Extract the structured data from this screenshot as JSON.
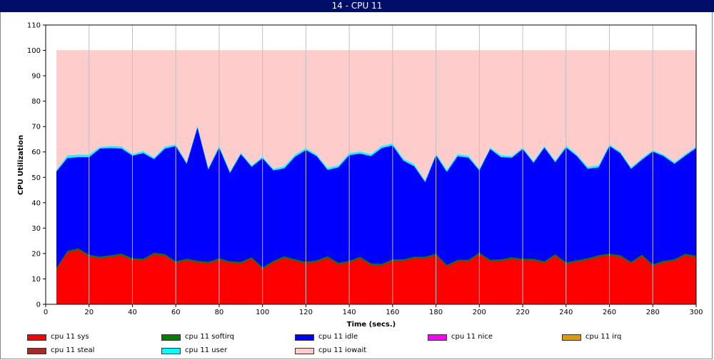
{
  "window": {
    "title": "14 - CPU 11"
  },
  "chart_data": {
    "type": "area",
    "stacked": true,
    "title": "",
    "xlabel": "Time (secs.)",
    "ylabel": "CPU Utilization",
    "xlim": [
      0,
      300
    ],
    "ylim": [
      0,
      110
    ],
    "x_ticks": [
      0,
      20,
      40,
      60,
      80,
      100,
      120,
      140,
      160,
      180,
      200,
      220,
      240,
      260,
      280,
      300
    ],
    "y_ticks": [
      0,
      10,
      20,
      30,
      40,
      50,
      60,
      70,
      80,
      90,
      100,
      110
    ],
    "grid": "vertical lines at x ticks, no horizontal gridlines",
    "legend_position": "bottom",
    "x": [
      5,
      10,
      15,
      20,
      25,
      30,
      35,
      40,
      45,
      50,
      55,
      60,
      65,
      70,
      75,
      80,
      85,
      90,
      95,
      100,
      105,
      110,
      115,
      120,
      125,
      130,
      135,
      140,
      145,
      150,
      155,
      160,
      165,
      170,
      175,
      180,
      185,
      190,
      195,
      200,
      205,
      210,
      215,
      220,
      225,
      230,
      235,
      240,
      245,
      250,
      255,
      260,
      265,
      270,
      275,
      280,
      285,
      290,
      295,
      300
    ],
    "series": [
      {
        "name": "cpu 11 sys",
        "color": "#ff0000",
        "values": [
          14,
          20.5,
          21.5,
          19,
          18.2,
          18.8,
          19.4,
          17.6,
          17.4,
          19.8,
          19.2,
          16.4,
          17.4,
          16.6,
          16.2,
          17.6,
          16.4,
          16.2,
          18,
          14,
          16.6,
          18.4,
          17.2,
          16.2,
          16.8,
          18.4,
          15.8,
          16.6,
          18.2,
          15.6,
          15.4,
          17.2,
          17.2,
          18.2,
          18.2,
          19.4,
          15,
          17,
          17,
          19.8,
          17,
          17.2,
          18,
          17.4,
          17.4,
          16.4,
          19.2,
          16,
          16.8,
          17.6,
          18.8,
          19.4,
          18.8,
          16.2,
          19,
          15.2,
          16.6,
          17.2,
          19.4,
          18.6
        ]
      },
      {
        "name": "cpu 11 softirq",
        "color": "#008000",
        "values": [
          0.6,
          0.6,
          0.6,
          0.6,
          0.6,
          0.6,
          0.6,
          0.6,
          0.6,
          0.6,
          0.6,
          0.6,
          0.6,
          0.6,
          0.6,
          0.6,
          0.6,
          0.6,
          0.6,
          0.6,
          0.6,
          0.6,
          0.6,
          0.6,
          0.6,
          0.6,
          0.6,
          0.6,
          0.6,
          0.6,
          0.6,
          0.6,
          0.6,
          0.6,
          0.6,
          0.6,
          0.6,
          0.6,
          0.6,
          0.6,
          0.6,
          0.6,
          0.6,
          0.6,
          0.6,
          0.6,
          0.6,
          0.6,
          0.6,
          0.6,
          0.6,
          0.6,
          0.6,
          0.6,
          0.6,
          0.6,
          0.6,
          0.6,
          0.6,
          0.6
        ]
      },
      {
        "name": "cpu 11 idle",
        "color": "#0000ff",
        "values": [
          37.8,
          36.6,
          35.9,
          38.4,
          42.6,
          42.2,
          41.4,
          40.4,
          41.6,
          36.8,
          41.6,
          45.4,
          37.4,
          52.6,
          36.4,
          43.6,
          34.8,
          42.4,
          35.6,
          43,
          35.6,
          34.6,
          40.4,
          44,
          41,
          34,
          37.6,
          41.6,
          40.6,
          42.2,
          45.6,
          44.8,
          38.8,
          35.6,
          29.4,
          38.8,
          36.6,
          40.8,
          40.2,
          32.4,
          43.6,
          40.2,
          39.2,
          43.2,
          37.8,
          44.8,
          36.2,
          45.2,
          41,
          35.2,
          34.6,
          42.4,
          40.2,
          36.6,
          37.4,
          44.4,
          41.2,
          37.6,
          38.6,
          42.4
        ]
      },
      {
        "name": "cpu 11 nice",
        "color": "#ff00ff",
        "values": [
          0,
          0,
          0,
          0,
          0,
          0,
          0,
          0,
          0,
          0,
          0,
          0,
          0,
          0,
          0,
          0,
          0,
          0,
          0,
          0,
          0,
          0,
          0,
          0,
          0,
          0,
          0,
          0,
          0,
          0,
          0,
          0,
          0,
          0,
          0,
          0,
          0,
          0,
          0,
          0,
          0,
          0,
          0,
          0,
          0,
          0,
          0,
          0,
          0,
          0,
          0,
          0,
          0,
          0,
          0,
          0,
          0,
          0,
          0,
          0
        ]
      },
      {
        "name": "cpu 11 irq",
        "color": "#e09a00",
        "values": [
          0,
          0,
          0,
          0,
          0,
          0,
          0,
          0,
          0,
          0,
          0,
          0,
          0,
          0,
          0,
          0,
          0,
          0,
          0,
          0,
          0,
          0,
          0,
          0,
          0,
          0,
          0,
          0,
          0,
          0,
          0,
          0,
          0,
          0,
          0,
          0,
          0,
          0,
          0,
          0,
          0,
          0,
          0,
          0,
          0,
          0,
          0,
          0,
          0,
          0,
          0,
          0,
          0,
          0,
          0,
          0,
          0,
          0,
          0,
          0
        ]
      },
      {
        "name": "cpu 11 steal",
        "color": "#a52a2a",
        "values": [
          0,
          0,
          0,
          0,
          0,
          0,
          0,
          0,
          0,
          0,
          0,
          0,
          0,
          0,
          0,
          0,
          0,
          0,
          0,
          0,
          0,
          0,
          0,
          0,
          0,
          0,
          0,
          0,
          0,
          0,
          0,
          0,
          0,
          0,
          0,
          0,
          0,
          0,
          0,
          0,
          0,
          0,
          0,
          0,
          0,
          0,
          0,
          0,
          0,
          0,
          0,
          0,
          0,
          0,
          0,
          0,
          0,
          0,
          0,
          0
        ]
      },
      {
        "name": "cpu 11 user",
        "color": "#00ffff",
        "values": [
          0.6,
          1,
          1,
          1,
          0.6,
          0.8,
          0.8,
          0.6,
          0.8,
          0.6,
          0.8,
          0.6,
          0.6,
          0.6,
          0.6,
          0.8,
          0.6,
          0.6,
          0.6,
          0.6,
          0.6,
          0.8,
          0.8,
          0.8,
          0.6,
          0.8,
          0.8,
          0.8,
          0.8,
          0.8,
          0.8,
          0.8,
          0.8,
          0.8,
          0.6,
          0.6,
          0.8,
          0.8,
          0.8,
          0.6,
          0.6,
          0.8,
          0.6,
          0.6,
          0.6,
          0.6,
          0.6,
          0.8,
          0.6,
          0.8,
          0.8,
          0.6,
          0.6,
          0.6,
          0.6,
          0.6,
          0.6,
          0.6,
          0.6,
          0.6
        ]
      },
      {
        "name": "cpu 11 iowait",
        "color": "#ffcccc",
        "values": [
          47,
          41.3,
          41,
          41,
          38,
          37.6,
          37.8,
          40.8,
          39.6,
          42.2,
          37.8,
          37,
          44,
          29.6,
          46.2,
          37.4,
          47.6,
          40.2,
          45.2,
          41.8,
          46.6,
          45.6,
          41,
          38.4,
          41,
          46.2,
          45.2,
          40.4,
          39.8,
          40.8,
          37.6,
          36.6,
          42.6,
          44.8,
          51.2,
          40.6,
          47,
          40.8,
          41.4,
          46.6,
          38.2,
          41.2,
          41.6,
          38.2,
          43.6,
          37.6,
          43.4,
          37.4,
          41,
          45.8,
          45.2,
          37,
          39.8,
          46,
          42.4,
          39.2,
          41,
          44,
          40.8,
          37.8
        ]
      }
    ]
  }
}
